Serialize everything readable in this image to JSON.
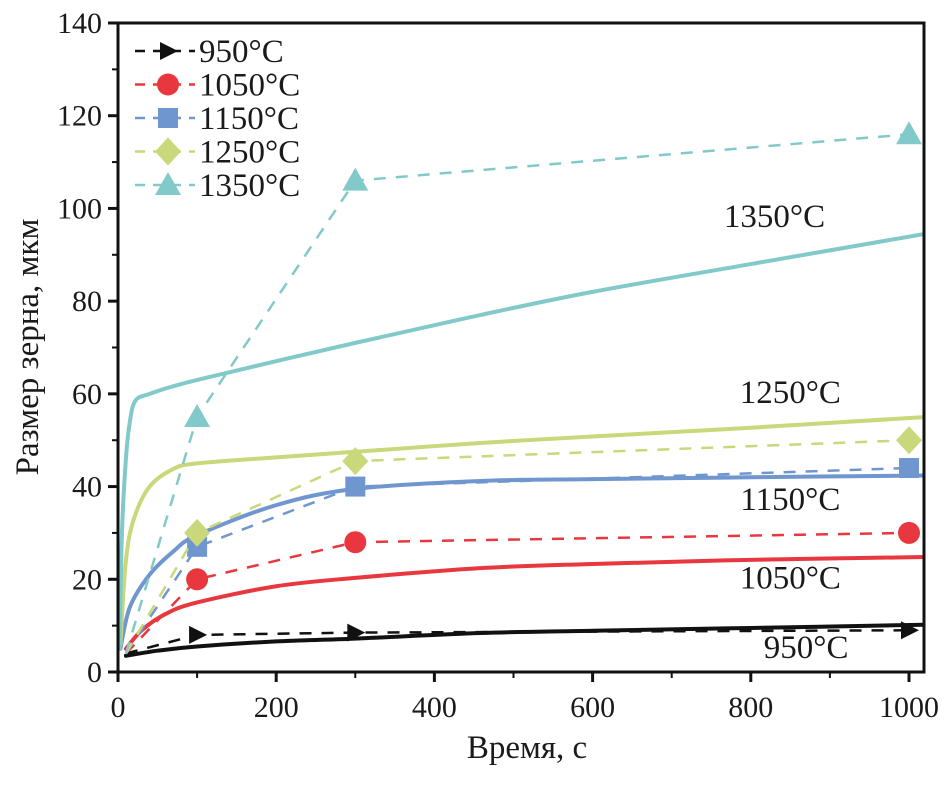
{
  "chart_data": {
    "type": "line",
    "title": "",
    "xlabel": "Время, с",
    "ylabel": "Размер зерна, мкм",
    "xlim": [
      0,
      1020
    ],
    "ylim": [
      0,
      140
    ],
    "x_ticks": [
      0,
      200,
      400,
      600,
      800,
      1000
    ],
    "x_tick_labels": [
      "0",
      "200",
      "400",
      "600",
      "800",
      "1000"
    ],
    "x_minor_ticks": [
      100,
      300,
      500,
      700,
      900
    ],
    "y_ticks": [
      0,
      20,
      40,
      60,
      80,
      100,
      120,
      140
    ],
    "y_tick_labels": [
      "0",
      "20",
      "40",
      "60",
      "80",
      "100",
      "120",
      "140"
    ],
    "y_minor_ticks": [
      10,
      30,
      50,
      70,
      90,
      110,
      130
    ],
    "grid": false,
    "legend_position": "top-left",
    "experimental_series": [
      {
        "name": "950°C",
        "color": "#111111",
        "marker": "triangle-right",
        "x": [
          10,
          100,
          300,
          1000
        ],
        "values": [
          4,
          8,
          8.5,
          9
        ]
      },
      {
        "name": "1050°C",
        "color": "#e8373e",
        "marker": "circle",
        "x": [
          10,
          100,
          300,
          1000
        ],
        "values": [
          4,
          20,
          28,
          30
        ]
      },
      {
        "name": "1150°C",
        "color": "#7096cf",
        "marker": "square",
        "x": [
          10,
          100,
          300,
          1000
        ],
        "values": [
          4,
          27,
          40,
          44
        ]
      },
      {
        "name": "1250°C",
        "color": "#c8d87a",
        "marker": "diamond",
        "x": [
          10,
          100,
          300,
          1000
        ],
        "values": [
          4,
          30,
          45.5,
          50
        ]
      },
      {
        "name": "1350°C",
        "color": "#82c9c9",
        "marker": "triangle-up",
        "x": [
          10,
          100,
          300,
          1000
        ],
        "values": [
          4,
          55,
          106,
          116
        ]
      }
    ],
    "model_series": [
      {
        "name": "950°C",
        "color": "#111111",
        "x": [
          10,
          50,
          100,
          200,
          300,
          458,
          600,
          800,
          1020
        ],
        "values": [
          3.5,
          4.6,
          5.5,
          6.6,
          7.2,
          8.4,
          8.9,
          9.5,
          10.2
        ]
      },
      {
        "name": "1050°C",
        "color": "#e8373e",
        "x": [
          10,
          30,
          60,
          100,
          200,
          300,
          458,
          600,
          800,
          1020
        ],
        "values": [
          5,
          9,
          12.5,
          15,
          18.5,
          20.3,
          22.4,
          23.3,
          24.2,
          24.8
        ]
      },
      {
        "name": "1150°C",
        "color": "#7096cf",
        "x": [
          3,
          15,
          40,
          70,
          100,
          200,
          300,
          458,
          600,
          800,
          1020
        ],
        "values": [
          5,
          14,
          21,
          26,
          29.5,
          36,
          39.5,
          41.2,
          41.6,
          42,
          42.4
        ]
      },
      {
        "name": "1250°C",
        "color": "#c8d87a",
        "x": [
          3,
          10,
          20,
          40,
          70,
          100,
          200,
          300,
          458,
          600,
          800,
          1020
        ],
        "values": [
          6,
          24,
          33,
          40,
          43.8,
          45,
          46.3,
          47.5,
          49.4,
          50.8,
          52.7,
          55
        ]
      },
      {
        "name": "1350°C",
        "color": "#82c9c9",
        "x": [
          2,
          5,
          10,
          15,
          22,
          40,
          100,
          300,
          458,
          600,
          800,
          1020
        ],
        "values": [
          5,
          30,
          46,
          54,
          58.5,
          60,
          63,
          71,
          77,
          82,
          88,
          94.5
        ]
      }
    ],
    "curve_labels": [
      {
        "text": "1350°C",
        "x": 830,
        "y": 96
      },
      {
        "text": "1250°C",
        "x": 850,
        "y": 58
      },
      {
        "text": "1150°C",
        "x": 850,
        "y": 35
      },
      {
        "text": "1050°C",
        "x": 850,
        "y": 18
      },
      {
        "text": "950°C",
        "x": 870,
        "y": 3
      }
    ]
  }
}
